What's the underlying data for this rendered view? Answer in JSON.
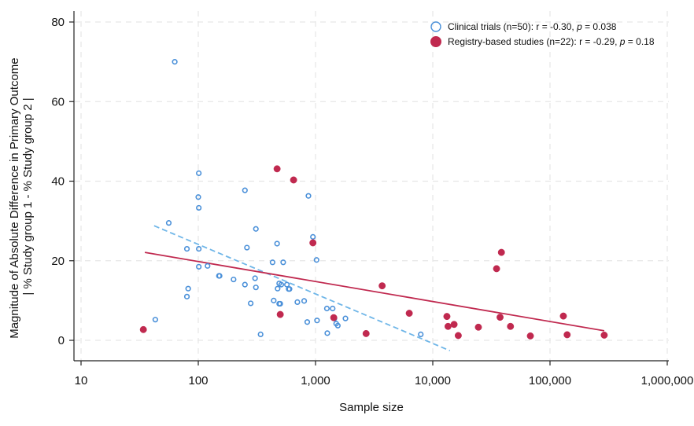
{
  "chart_data": {
    "type": "scatter",
    "xlabel": "Sample size",
    "ylabel_lines": [
      "Magnitude of Absolute Difference in Primary Outcome",
      "| % Study group 1 - % Study group 2 |"
    ],
    "xscale": "log",
    "xlim": [
      10,
      1000000
    ],
    "ylim": [
      -5,
      82
    ],
    "x_ticks": [
      10,
      100,
      1000,
      10000,
      100000,
      1000000
    ],
    "x_tick_labels": [
      "10",
      "100",
      "1,000",
      "10,000",
      "100,000",
      "1,000,000"
    ],
    "y_ticks": [
      0,
      20,
      40,
      60,
      80
    ],
    "y_tick_labels": [
      "0",
      "20",
      "40",
      "60",
      "80"
    ],
    "grid": true,
    "legend_position": "top-right",
    "colors": {
      "clinical": "#4a90d9",
      "registry": "#c0294f",
      "clinical_fit": "#6fb6e8",
      "registry_fit": "#c0294f"
    },
    "series": [
      {
        "name": "Clinical trials (n=50)",
        "legend_stat_prefix": ": r = -0.30, ",
        "legend_p_label": "p",
        "legend_p_value": " = 0.038",
        "marker": "hollow-circle",
        "points": [
          [
            63,
            70
          ],
          [
            101,
            42
          ],
          [
            100,
            36
          ],
          [
            101,
            33.3
          ],
          [
            56,
            29.5
          ],
          [
            80,
            23
          ],
          [
            101,
            23
          ],
          [
            82,
            13
          ],
          [
            80,
            11
          ],
          [
            43,
            5.2
          ],
          [
            101,
            18.5
          ],
          [
            120,
            18.7
          ],
          [
            150,
            16.2
          ],
          [
            152,
            16.2
          ],
          [
            200,
            15.3
          ],
          [
            250,
            37.7
          ],
          [
            260,
            23.3
          ],
          [
            250,
            14
          ],
          [
            280,
            9.3
          ],
          [
            310,
            28
          ],
          [
            305,
            15.6
          ],
          [
            310,
            13.3
          ],
          [
            340,
            1.5
          ],
          [
            430,
            19.6
          ],
          [
            440,
            10
          ],
          [
            470,
            24.3
          ],
          [
            475,
            13
          ],
          [
            490,
            9.2
          ],
          [
            490,
            14.3
          ],
          [
            500,
            9.2
          ],
          [
            510,
            14
          ],
          [
            530,
            19.6
          ],
          [
            570,
            14
          ],
          [
            590,
            12.9
          ],
          [
            600,
            12.9
          ],
          [
            700,
            9.6
          ],
          [
            800,
            9.9
          ],
          [
            850,
            4.6
          ],
          [
            870,
            36.3
          ],
          [
            950,
            26
          ],
          [
            1020,
            20.2
          ],
          [
            1030,
            5
          ],
          [
            1250,
            8
          ],
          [
            1260,
            1.8
          ],
          [
            1400,
            8
          ],
          [
            1450,
            5.5
          ],
          [
            1500,
            4.2
          ],
          [
            1550,
            3.7
          ],
          [
            1800,
            5.5
          ],
          [
            7900,
            1.5
          ]
        ],
        "fit_line": {
          "x": [
            42,
            14000
          ],
          "y": [
            28.8,
            -2.6
          ]
        }
      },
      {
        "name": "Registry-based studies (n=22)",
        "legend_stat_prefix": ": r = -0.29, ",
        "legend_p_label": "p",
        "legend_p_value": " = 0.18",
        "marker": "filled-circle",
        "points": [
          [
            34,
            2.7
          ],
          [
            470,
            43.1
          ],
          [
            650,
            40.3
          ],
          [
            500,
            6.5
          ],
          [
            950,
            24.5
          ],
          [
            1430,
            5.7
          ],
          [
            2700,
            1.7
          ],
          [
            3700,
            13.7
          ],
          [
            6300,
            6.8
          ],
          [
            13200,
            6
          ],
          [
            13500,
            3.5
          ],
          [
            15200,
            4
          ],
          [
            16500,
            1.2
          ],
          [
            24500,
            3.3
          ],
          [
            35000,
            18
          ],
          [
            37500,
            5.8
          ],
          [
            38500,
            22.1
          ],
          [
            46000,
            3.5
          ],
          [
            68000,
            1.1
          ],
          [
            130000,
            6.1
          ],
          [
            140000,
            1.4
          ],
          [
            290000,
            1.3
          ]
        ],
        "fit_line": {
          "x": [
            35,
            290000
          ],
          "y": [
            22.1,
            2.4
          ]
        }
      }
    ]
  }
}
